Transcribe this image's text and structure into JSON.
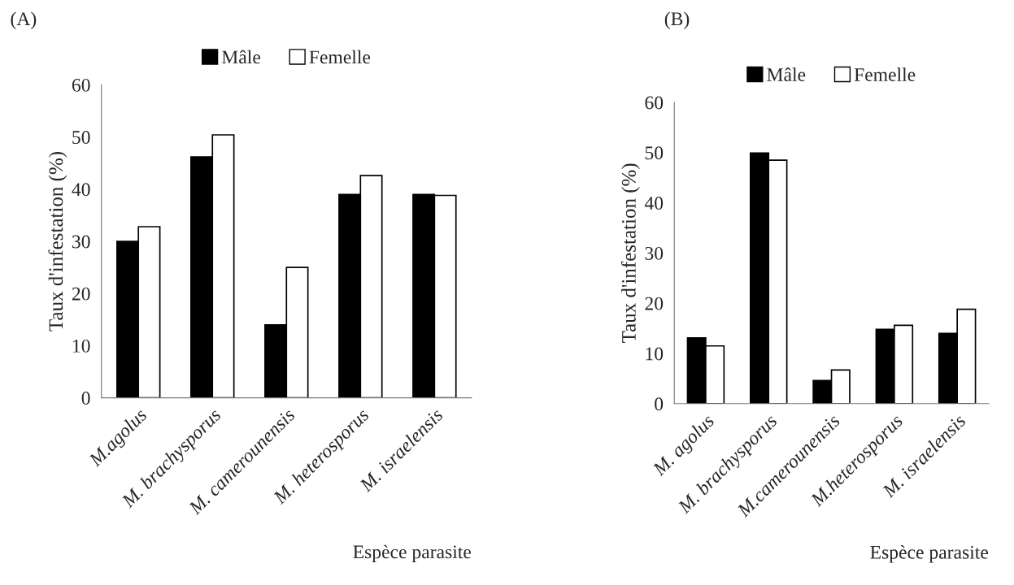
{
  "chart_data": [
    {
      "type": "bar",
      "title": "(A)",
      "xlabel": "Espèce parasite",
      "ylabel": "Taux d'infestation (%)",
      "categories": [
        "M.agolus",
        "M. brachysporus",
        "M. camerounensis",
        "M. heterosporus",
        "M. israelensis"
      ],
      "series": [
        {
          "name": "Mâle",
          "color": "#000000",
          "values": [
            30,
            46.2,
            14,
            39,
            39
          ]
        },
        {
          "name": "Femelle",
          "color": "#ffffff",
          "values": [
            32.8,
            50.4,
            25,
            42.6,
            38.8
          ]
        }
      ],
      "ylim": [
        0,
        60
      ],
      "yticks": [
        0,
        10,
        20,
        30,
        40,
        50,
        60
      ],
      "grid": false,
      "legend": "top"
    },
    {
      "type": "bar",
      "title": "(B)",
      "xlabel": "Espèce parasite",
      "ylabel": "Taux d'infestation (%)",
      "categories": [
        "M. agolus",
        "M. brachysporus",
        "M.camerounensis",
        "M.heterosporus",
        "M. israelensis"
      ],
      "series": [
        {
          "name": "Mâle",
          "color": "#000000",
          "values": [
            13.1,
            49.9,
            4.6,
            14.8,
            14.0
          ]
        },
        {
          "name": "Femelle",
          "color": "#ffffff",
          "values": [
            11.5,
            48.5,
            6.7,
            15.6,
            18.8
          ]
        }
      ],
      "ylim": [
        0,
        60
      ],
      "yticks": [
        0,
        10,
        20,
        30,
        40,
        50,
        60
      ],
      "grid": false,
      "legend": "top"
    }
  ]
}
